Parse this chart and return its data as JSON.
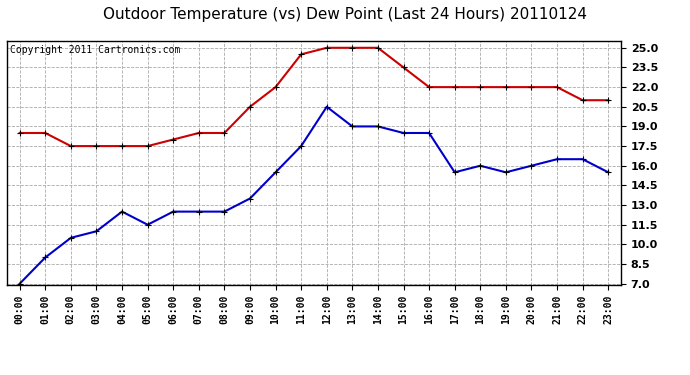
{
  "title": "Outdoor Temperature (vs) Dew Point (Last 24 Hours) 20110124",
  "copyright_text": "Copyright 2011 Cartronics.com",
  "hours": [
    "00:00",
    "01:00",
    "02:00",
    "03:00",
    "04:00",
    "05:00",
    "06:00",
    "07:00",
    "08:00",
    "09:00",
    "10:00",
    "11:00",
    "12:00",
    "13:00",
    "14:00",
    "15:00",
    "16:00",
    "17:00",
    "18:00",
    "19:00",
    "20:00",
    "21:00",
    "22:00",
    "23:00"
  ],
  "temp_red": [
    18.5,
    18.5,
    17.5,
    17.5,
    17.5,
    17.5,
    18.0,
    18.5,
    18.5,
    20.5,
    22.0,
    24.5,
    25.0,
    25.0,
    25.0,
    23.5,
    22.0,
    22.0,
    22.0,
    22.0,
    22.0,
    22.0,
    21.0,
    21.0
  ],
  "dew_blue": [
    7.0,
    9.0,
    10.5,
    11.0,
    12.5,
    11.5,
    12.5,
    12.5,
    12.5,
    13.5,
    15.5,
    17.5,
    20.5,
    19.0,
    19.0,
    18.5,
    18.5,
    15.5,
    16.0,
    15.5,
    16.0,
    16.5,
    16.5,
    15.5
  ],
  "ylim_min": 7.0,
  "ylim_max": 25.5,
  "yticks": [
    7.0,
    8.5,
    10.0,
    11.5,
    13.0,
    14.5,
    16.0,
    17.5,
    19.0,
    20.5,
    22.0,
    23.5,
    25.0
  ],
  "red_color": "#cc0000",
  "blue_color": "#0000cc",
  "grid_color": "#aaaaaa",
  "bg_color": "#ffffff",
  "plot_bg": "#ffffff",
  "title_fontsize": 11,
  "copyright_fontsize": 7
}
